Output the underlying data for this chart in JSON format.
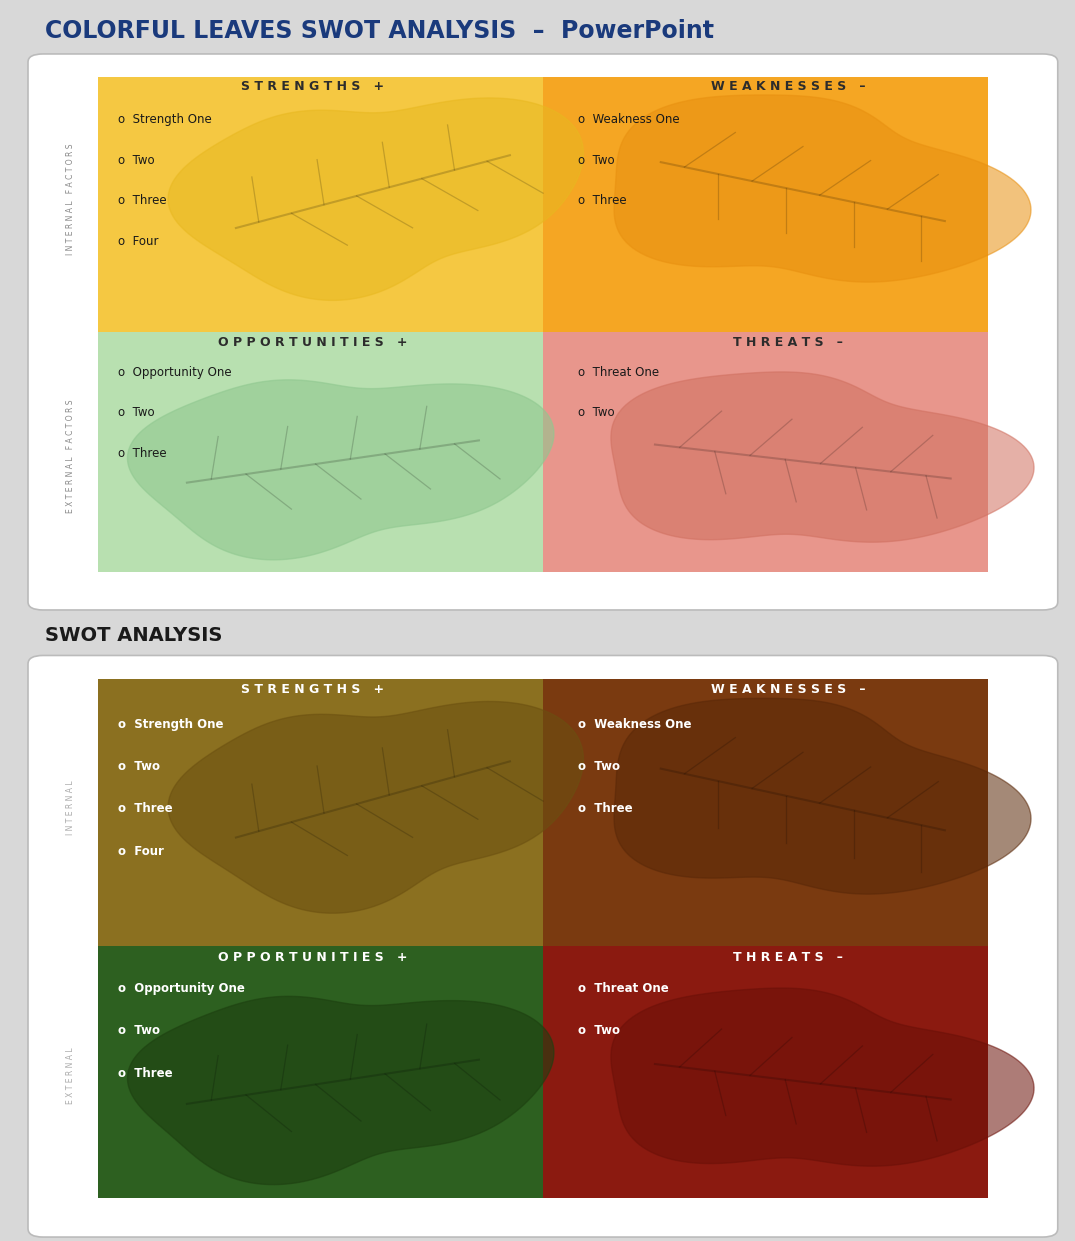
{
  "title1": "COLORFUL LEAVES SWOT ANALYSIS  –  PowerPoint",
  "title2": "SWOT ANALYSIS",
  "bg_color": "#d8d8d8",
  "panel1_bg": "#ffffff",
  "panel2_bg": "#ffffff",
  "chart1": {
    "strengths_color": "#f5c842",
    "weaknesses_color": "#f5a623",
    "opportunities_color": "#b8e0b0",
    "threats_color": "#e8968c",
    "strengths_leaf": "#e8b820",
    "weaknesses_leaf": "#e89010",
    "opportunities_leaf": "#90c890",
    "threats_leaf": "#d07060",
    "header_text_color": "#2c2c2c",
    "body_text_color": "#1a1a1a",
    "side_label_color": "#888888",
    "strengths_title": "S T R E N G T H S   +",
    "weaknesses_title": "W E A K N E S S E S   –",
    "opportunities_title": "O P P O R T U N I T I E S   +",
    "threats_title": "T H R E A T S   –",
    "strengths_items": [
      "Strength One",
      "Two",
      "Three",
      "Four"
    ],
    "weaknesses_items": [
      "Weakness One",
      "Two",
      "Three"
    ],
    "opportunities_items": [
      "Opportunity One",
      "Two",
      "Three"
    ],
    "threats_items": [
      "Threat One",
      "Two"
    ],
    "internal_label": "I N T E R N A L   F A C T O R S",
    "external_label": "E X T E R N A L   F A C T O R S"
  },
  "chart2": {
    "strengths_color": "#8b7020",
    "weaknesses_color": "#7a3a10",
    "opportunities_color": "#2d6020",
    "threats_color": "#8b1a10",
    "strengths_leaf": "#6b5010",
    "weaknesses_leaf": "#5a2808",
    "opportunities_leaf": "#1d4010",
    "threats_leaf": "#6b1008",
    "header_text_color": "#ffffff",
    "body_text_color": "#ffffff",
    "side_label_color": "#aaaaaa",
    "strengths_title": "S T R E N G T H S   +",
    "weaknesses_title": "W E A K N E S S E S   –",
    "opportunities_title": "O P P O R T U N I T I E S   +",
    "threats_title": "T H R E A T S   –",
    "strengths_items": [
      "Strength One",
      "Two",
      "Three",
      "Four"
    ],
    "weaknesses_items": [
      "Weakness One",
      "Two",
      "Three"
    ],
    "opportunities_items": [
      "Opportunity One",
      "Two",
      "Three"
    ],
    "threats_items": [
      "Threat One",
      "Two"
    ],
    "internal_label": "I N T E R N A L",
    "external_label": "E X T E R N A L"
  }
}
